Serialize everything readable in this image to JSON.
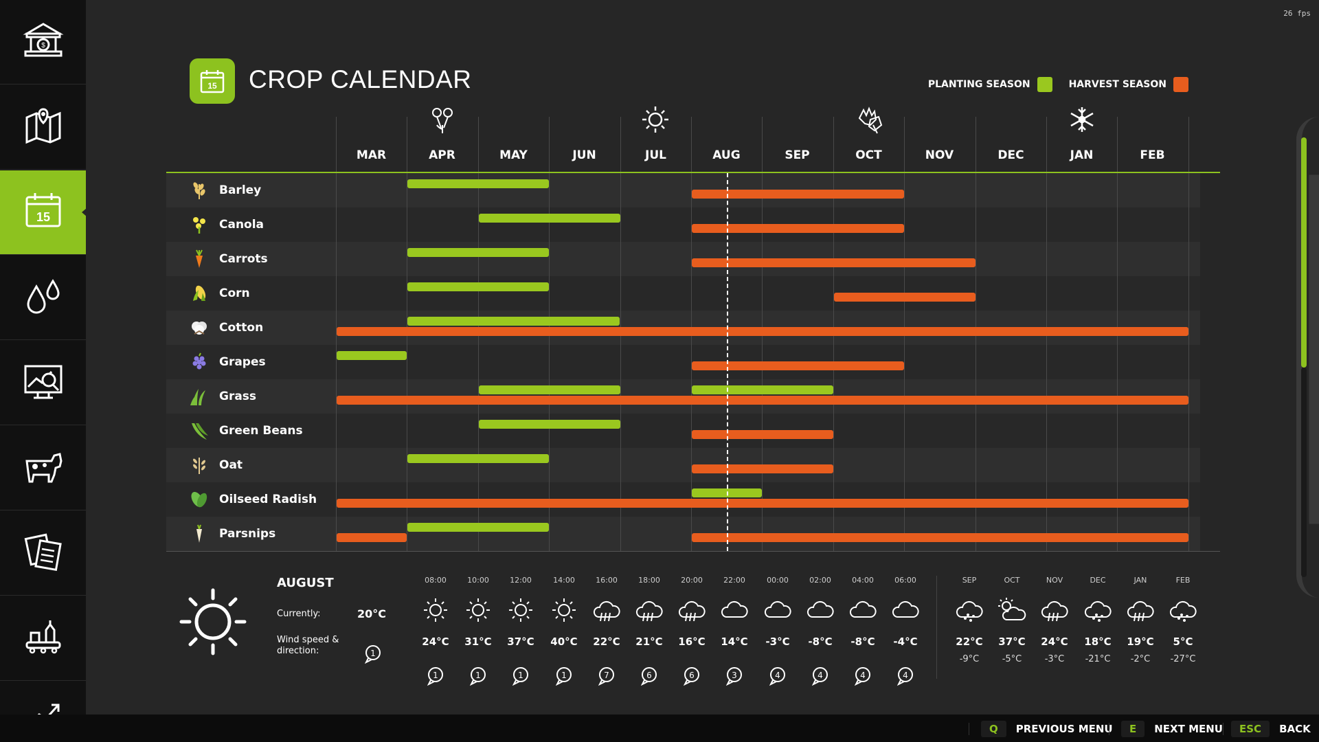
{
  "fps": "26 fps",
  "title": "CROP CALENDAR",
  "title_icon_number": "15",
  "legend": {
    "planting": "PLANTING SEASON",
    "harvest": "HARVEST SEASON",
    "planting_color": "#9ac81f",
    "harvest_color": "#e85d1e"
  },
  "sidebar": {
    "items": [
      {
        "icon": "bank-icon",
        "active": false
      },
      {
        "icon": "map-icon",
        "active": false
      },
      {
        "icon": "calendar-icon",
        "active": true,
        "number": "15"
      },
      {
        "icon": "water-drops-icon",
        "active": false
      },
      {
        "icon": "statistics-icon",
        "active": false
      },
      {
        "icon": "cow-icon",
        "active": false
      },
      {
        "icon": "contracts-icon",
        "active": false
      },
      {
        "icon": "production-icon",
        "active": false
      },
      {
        "icon": "prices-icon",
        "active": false
      }
    ]
  },
  "months": [
    "MAR",
    "APR",
    "MAY",
    "JUN",
    "JUL",
    "AUG",
    "SEP",
    "OCT",
    "NOV",
    "DEC",
    "JAN",
    "FEB"
  ],
  "season_icons": [
    {
      "name": "spring-flower-icon",
      "month": "APR"
    },
    {
      "name": "summer-sun-icon",
      "month": "JUL"
    },
    {
      "name": "autumn-leaves-icon",
      "month": "OCT"
    },
    {
      "name": "winter-snowflake-icon",
      "month": "JAN"
    }
  ],
  "today_month_fraction": 5.5,
  "crops": [
    {
      "name": "Barley",
      "icon": "barley-icon",
      "planting": [
        [
          1,
          3
        ]
      ],
      "harvest": [
        [
          5,
          8
        ]
      ]
    },
    {
      "name": "Canola",
      "icon": "canola-icon",
      "planting": [
        [
          2,
          4
        ]
      ],
      "harvest": [
        [
          5,
          8
        ]
      ]
    },
    {
      "name": "Carrots",
      "icon": "carrot-icon",
      "planting": [
        [
          1,
          3
        ]
      ],
      "harvest": [
        [
          5,
          9
        ]
      ]
    },
    {
      "name": "Corn",
      "icon": "corn-icon",
      "planting": [
        [
          1,
          3
        ]
      ],
      "harvest": [
        [
          7,
          9
        ]
      ]
    },
    {
      "name": "Cotton",
      "icon": "cotton-icon",
      "planting": [
        [
          1,
          4
        ]
      ],
      "harvest": [
        [
          0,
          12
        ]
      ]
    },
    {
      "name": "Grapes",
      "icon": "grapes-icon",
      "planting": [
        [
          0,
          1
        ]
      ],
      "harvest": [
        [
          5,
          8
        ]
      ]
    },
    {
      "name": "Grass",
      "icon": "grass-icon",
      "planting": [
        [
          2,
          4
        ],
        [
          5,
          7
        ]
      ],
      "harvest": [
        [
          0,
          12
        ]
      ]
    },
    {
      "name": "Green Beans",
      "icon": "green-beans-icon",
      "planting": [
        [
          2,
          4
        ]
      ],
      "harvest": [
        [
          5,
          7
        ]
      ]
    },
    {
      "name": "Oat",
      "icon": "oat-icon",
      "planting": [
        [
          1,
          3
        ]
      ],
      "harvest": [
        [
          5,
          7
        ]
      ]
    },
    {
      "name": "Oilseed Radish",
      "icon": "oilseed-radish-icon",
      "planting": [
        [
          5,
          6
        ]
      ],
      "harvest": [
        [
          0,
          12
        ]
      ]
    },
    {
      "name": "Parsnips",
      "icon": "parsnip-icon",
      "planting": [
        [
          1,
          3
        ]
      ],
      "harvest": [
        [
          0,
          1
        ],
        [
          5,
          12
        ]
      ]
    }
  ],
  "weather": {
    "month": "AUGUST",
    "current_label": "Currently:",
    "current_value": "20°C",
    "wind_label": "Wind speed & direction:",
    "wind_value": "1",
    "main_icon": "sun-icon",
    "hourly": [
      {
        "time": "08:00",
        "icon": "sun-icon",
        "temp": "24°C",
        "wind": "1"
      },
      {
        "time": "10:00",
        "icon": "sun-icon",
        "temp": "31°C",
        "wind": "1"
      },
      {
        "time": "12:00",
        "icon": "sun-icon",
        "temp": "37°C",
        "wind": "1"
      },
      {
        "time": "14:00",
        "icon": "sun-icon",
        "temp": "40°C",
        "wind": "1"
      },
      {
        "time": "16:00",
        "icon": "rain-icon",
        "temp": "22°C",
        "wind": "7"
      },
      {
        "time": "18:00",
        "icon": "rain-icon",
        "temp": "21°C",
        "wind": "6"
      },
      {
        "time": "20:00",
        "icon": "rain-icon",
        "temp": "16°C",
        "wind": "6"
      },
      {
        "time": "22:00",
        "icon": "cloud-icon",
        "temp": "14°C",
        "wind": "3"
      },
      {
        "time": "00:00",
        "icon": "cloud-icon",
        "temp": "-3°C",
        "wind": "4"
      },
      {
        "time": "02:00",
        "icon": "cloud-icon",
        "temp": "-8°C",
        "wind": "4"
      },
      {
        "time": "04:00",
        "icon": "cloud-icon",
        "temp": "-8°C",
        "wind": "4"
      },
      {
        "time": "06:00",
        "icon": "cloud-icon",
        "temp": "-4°C",
        "wind": "4"
      }
    ],
    "monthly": [
      {
        "month": "SEP",
        "icon": "snow-icon",
        "high": "22°C",
        "low": "-9°C"
      },
      {
        "month": "OCT",
        "icon": "partly-sunny-icon",
        "high": "37°C",
        "low": "-5°C"
      },
      {
        "month": "NOV",
        "icon": "rain-icon",
        "high": "24°C",
        "low": "-3°C"
      },
      {
        "month": "DEC",
        "icon": "snow-icon",
        "high": "18°C",
        "low": "-21°C"
      },
      {
        "month": "JAN",
        "icon": "rain-icon",
        "high": "19°C",
        "low": "-2°C"
      },
      {
        "month": "FEB",
        "icon": "snow-icon",
        "high": "5°C",
        "low": "-27°C"
      }
    ]
  },
  "footer": {
    "prev_key": "Q",
    "prev_label": "PREVIOUS MENU",
    "next_key": "E",
    "next_label": "NEXT MENU",
    "back_key": "ESC",
    "back_label": "BACK"
  }
}
